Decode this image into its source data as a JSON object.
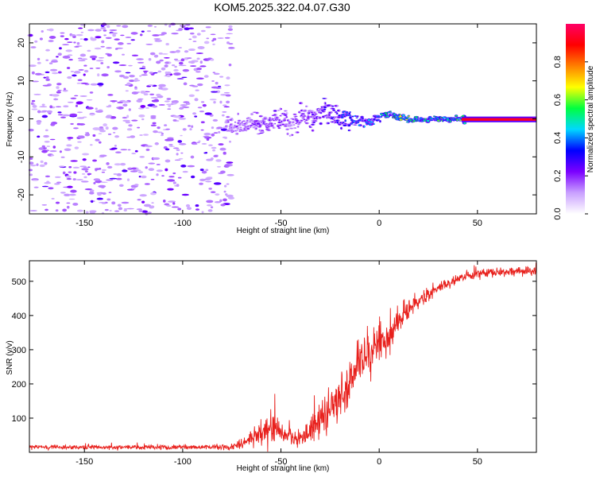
{
  "figure_title": "KOM5.2025.322.04.07.G30",
  "chart_data": [
    {
      "type": "heatmap",
      "name": "spectrogram",
      "xlabel": "Height of straight line (km)",
      "ylabel": "Frequency (Hz)",
      "xlim": [
        -178,
        80
      ],
      "ylim": [
        -25,
        25
      ],
      "xticks": [
        -150,
        -100,
        -50,
        0,
        50
      ],
      "yticks": [
        20,
        10,
        0,
        -10,
        -20
      ],
      "colorbar": {
        "label": "Normalized spectral amplitude",
        "range": [
          0,
          1
        ],
        "ticks": [
          "0.0",
          "0.2",
          "0.4",
          "0.6",
          "0.8"
        ],
        "colormap": [
          "#ffffff",
          "#c9a0ff",
          "#7b00ff",
          "#0000ff",
          "#00d8ff",
          "#00ff40",
          "#ffff00",
          "#ff8000",
          "#ff0000",
          "#ff0066"
        ]
      },
      "signal_track": {
        "x": [
          -70,
          -60,
          -50,
          -45,
          -40,
          -35,
          -30,
          -25,
          -20,
          -15,
          -10,
          -5,
          0,
          5,
          10,
          15,
          20,
          25,
          30,
          35,
          40,
          45,
          50,
          60,
          70,
          80
        ],
        "freq": [
          -2,
          -1,
          0,
          -1.5,
          0.5,
          -0.5,
          2,
          1.5,
          0.2,
          0,
          -0.5,
          -1.5,
          0.8,
          1,
          0.6,
          -0.2,
          -0.3,
          -0.2,
          0,
          -0.2,
          -0.1,
          -0.1,
          -0.1,
          -0.1,
          -0.1,
          -0.1
        ],
        "amp": [
          0.2,
          0.25,
          0.25,
          0.2,
          0.25,
          0.25,
          0.3,
          0.3,
          0.35,
          0.4,
          0.45,
          0.45,
          0.5,
          0.55,
          0.7,
          0.65,
          0.55,
          0.55,
          0.6,
          0.6,
          0.6,
          0.85,
          0.9,
          0.9,
          0.92,
          0.95
        ]
      },
      "noise_region_xmax": -75
    },
    {
      "type": "line",
      "name": "snr",
      "xlabel": "Height of straight line (km)",
      "ylabel": "SNR (v/v)",
      "xlim": [
        -178,
        80
      ],
      "ylim": [
        0,
        560
      ],
      "xticks": [
        -150,
        -100,
        -50,
        0,
        50
      ],
      "yticks": [
        500,
        400,
        300,
        200,
        100
      ],
      "series_color": "#e8201c",
      "series": [
        {
          "name": "SNR",
          "x": [
            -178,
            -150,
            -120,
            -90,
            -75,
            -70,
            -65,
            -60,
            -55,
            -50,
            -45,
            -40,
            -35,
            -30,
            -25,
            -20,
            -15,
            -10,
            -5,
            0,
            5,
            10,
            15,
            20,
            25,
            30,
            35,
            40,
            45,
            50,
            55,
            60,
            65,
            70,
            75,
            80
          ],
          "mean": [
            15,
            15,
            15,
            15,
            15,
            25,
            45,
            60,
            70,
            55,
            45,
            35,
            60,
            100,
            120,
            160,
            210,
            260,
            290,
            320,
            340,
            380,
            420,
            440,
            460,
            480,
            495,
            505,
            515,
            520,
            525,
            525,
            528,
            530,
            530,
            530
          ],
          "noise": [
            8,
            8,
            8,
            8,
            10,
            20,
            35,
            50,
            55,
            45,
            35,
            30,
            45,
            70,
            70,
            80,
            80,
            90,
            90,
            80,
            70,
            50,
            35,
            30,
            25,
            22,
            20,
            18,
            18,
            18,
            18,
            18,
            18,
            18,
            18,
            18
          ]
        }
      ]
    }
  ]
}
